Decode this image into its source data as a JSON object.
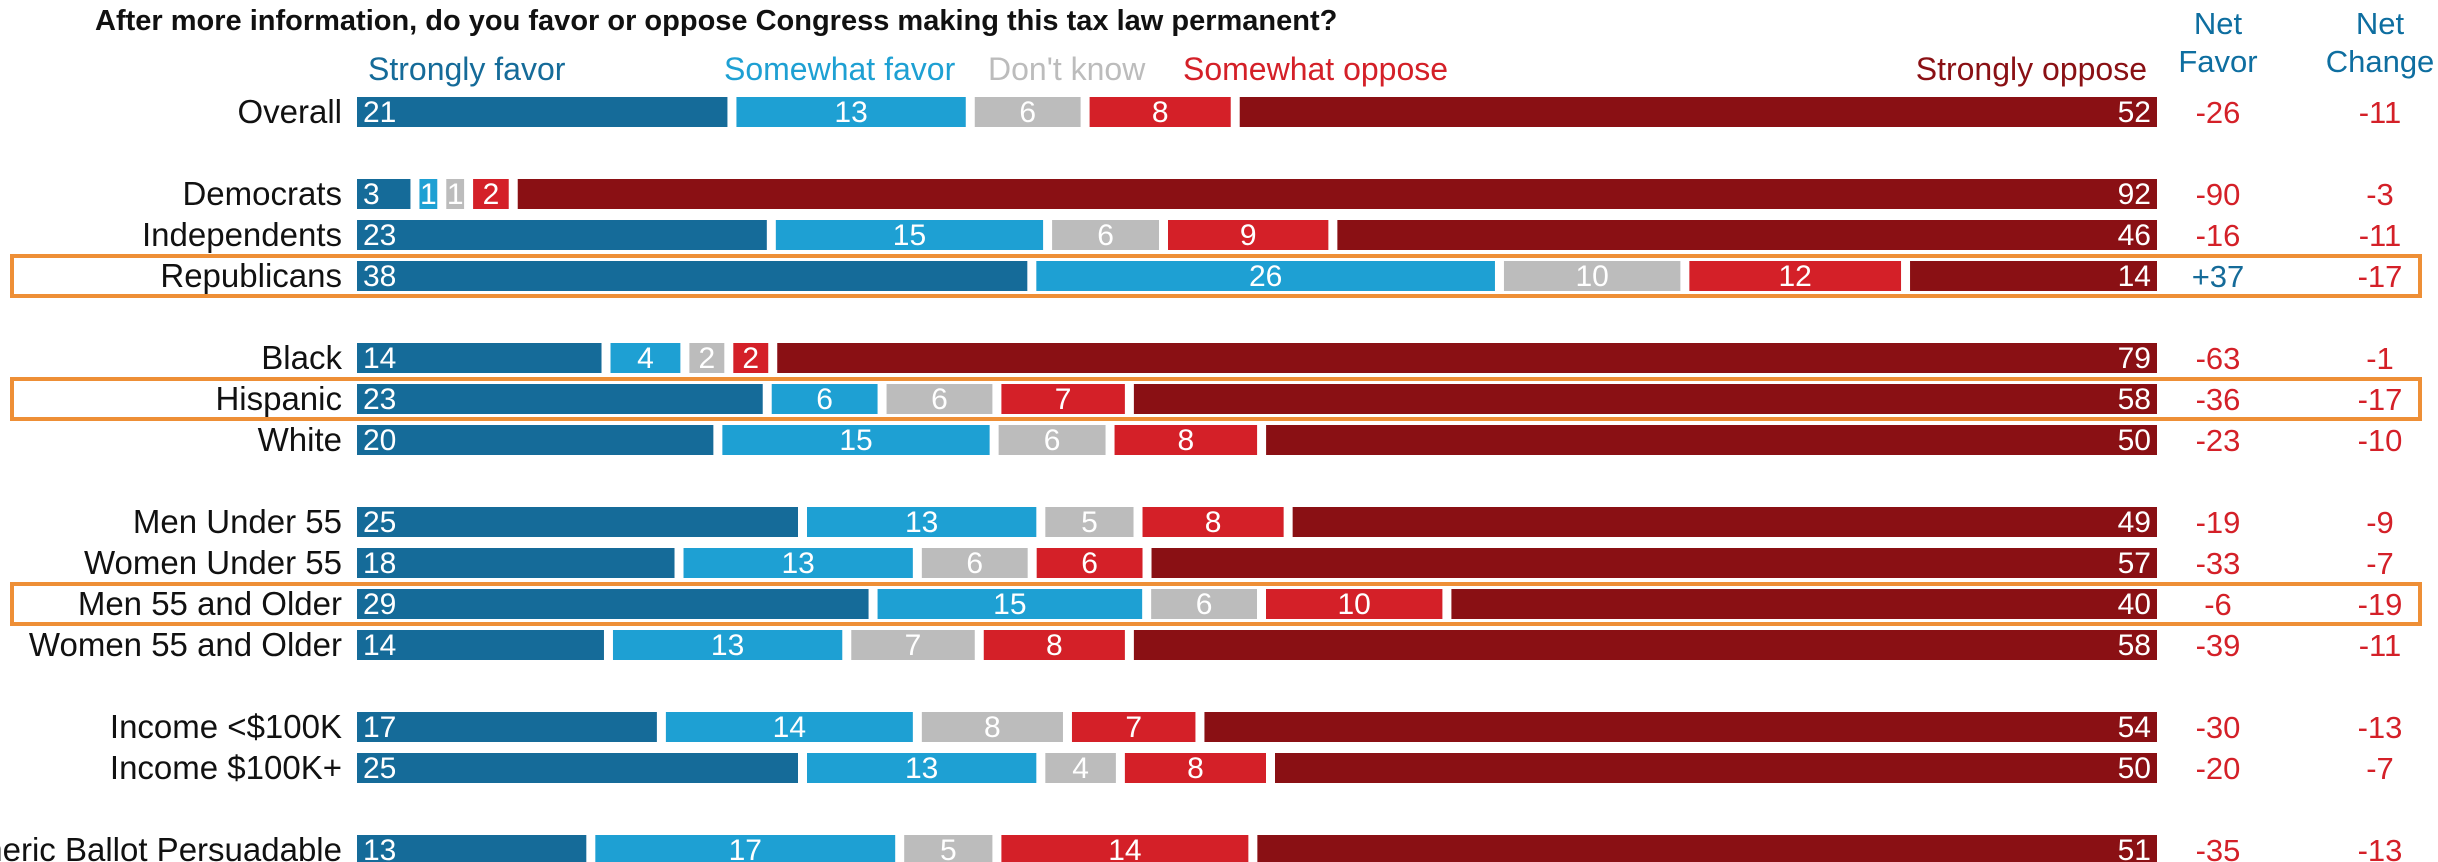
{
  "chart_data": {
    "type": "bar",
    "orientation": "horizontal",
    "stacked": true,
    "title": "After more information, do you favor or oppose Congress making this tax law permanent?",
    "legend": [
      "Strongly favor",
      "Somewhat favor",
      "Don't know",
      "Somewhat oppose",
      "Strongly oppose"
    ],
    "column_headers": {
      "net_favor": [
        "Net",
        "Favor"
      ],
      "net_change": [
        "Net",
        "Change"
      ]
    },
    "colors": {
      "strongly_favor": "#156b99",
      "somewhat_favor": "#1ea0d3",
      "dont_know": "#bcbcbc",
      "somewhat_oppose": "#d42028",
      "strongly_oppose": "#8a1014",
      "net_positive": "#156b99",
      "net_negative": "#d42028",
      "highlight": "#ee8f36"
    },
    "rows": [
      {
        "label": "Overall",
        "values": [
          21,
          13,
          6,
          8,
          52
        ],
        "net_favor": "-26",
        "net_change": "-11"
      },
      {
        "label": "Democrats",
        "values": [
          3,
          1,
          1,
          2,
          92
        ],
        "net_favor": "-90",
        "net_change": "-3"
      },
      {
        "label": "Independents",
        "values": [
          23,
          15,
          6,
          9,
          46
        ],
        "net_favor": "-16",
        "net_change": "-11"
      },
      {
        "label": "Republicans",
        "values": [
          38,
          26,
          10,
          12,
          14
        ],
        "net_favor": "+37",
        "net_change": "-17",
        "highlighted": true
      },
      {
        "label": "Black",
        "values": [
          14,
          4,
          2,
          2,
          79
        ],
        "net_favor": "-63",
        "net_change": "-1"
      },
      {
        "label": "Hispanic",
        "values": [
          23,
          6,
          6,
          7,
          58
        ],
        "net_favor": "-36",
        "net_change": "-17",
        "highlighted": true
      },
      {
        "label": "White",
        "values": [
          20,
          15,
          6,
          8,
          50
        ],
        "net_favor": "-23",
        "net_change": "-10"
      },
      {
        "label": "Men Under 55",
        "values": [
          25,
          13,
          5,
          8,
          49
        ],
        "net_favor": "-19",
        "net_change": "-9"
      },
      {
        "label": "Women Under 55",
        "values": [
          18,
          13,
          6,
          6,
          57
        ],
        "net_favor": "-33",
        "net_change": "-7"
      },
      {
        "label": "Men 55 and Older",
        "values": [
          29,
          15,
          6,
          10,
          40
        ],
        "net_favor": "-6",
        "net_change": "-19",
        "highlighted": true
      },
      {
        "label": "Women 55 and Older",
        "values": [
          14,
          13,
          7,
          8,
          58
        ],
        "net_favor": "-39",
        "net_change": "-11"
      },
      {
        "label": "Income <$100K",
        "values": [
          17,
          14,
          8,
          7,
          54
        ],
        "net_favor": "-30",
        "net_change": "-13"
      },
      {
        "label": "Income $100K+",
        "values": [
          25,
          13,
          4,
          8,
          50
        ],
        "net_favor": "-20",
        "net_change": "-7"
      },
      {
        "label": "Generic Ballot Persuadable",
        "values": [
          13,
          17,
          5,
          14,
          51
        ],
        "net_favor": "-35",
        "net_change": "-13"
      }
    ]
  }
}
